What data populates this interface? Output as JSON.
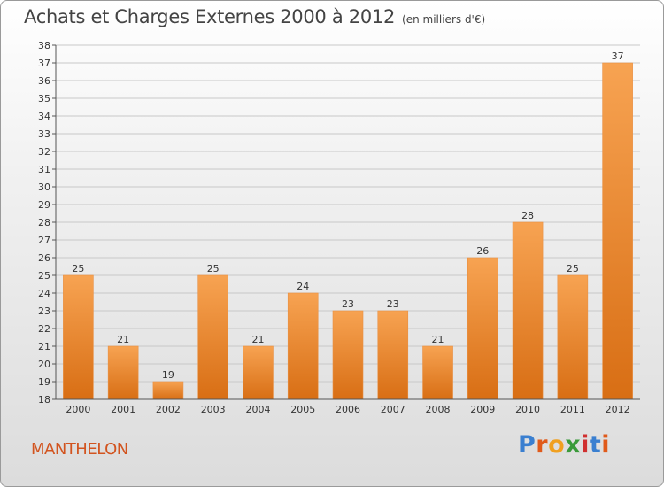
{
  "header": {
    "title": "Achats et Charges Externes 2000 à 2012",
    "subtitle": "(en milliers d'€)"
  },
  "footer": {
    "commune": "MANTHELON",
    "logo_text": "Proxiti",
    "logo_colors": [
      "#3a7fd0",
      "#e05a1a",
      "#f0a020",
      "#3a9a3a",
      "#d03030",
      "#3a7fd0",
      "#e05a1a"
    ]
  },
  "colors": {
    "bar_top": "#f7a352",
    "bar_bottom": "#d86e14",
    "bar_edge": "#e89044",
    "grid": "#c8c8c8",
    "axis": "#555555",
    "label": "#333333"
  },
  "chart_data": {
    "type": "bar",
    "title": "Achats et Charges Externes 2000 à 2012",
    "subtitle": "(en milliers d'€)",
    "categories": [
      "2000",
      "2001",
      "2002",
      "2003",
      "2004",
      "2005",
      "2006",
      "2007",
      "2008",
      "2009",
      "2010",
      "2011",
      "2012"
    ],
    "values": [
      25,
      21,
      19,
      25,
      21,
      24,
      23,
      23,
      21,
      26,
      28,
      25,
      37
    ],
    "ylim": [
      18,
      38
    ],
    "yticks": [
      18,
      19,
      20,
      21,
      22,
      23,
      24,
      25,
      26,
      27,
      28,
      29,
      30,
      31,
      32,
      33,
      34,
      35,
      36,
      37,
      38
    ],
    "grid": true,
    "data_labels": true
  }
}
